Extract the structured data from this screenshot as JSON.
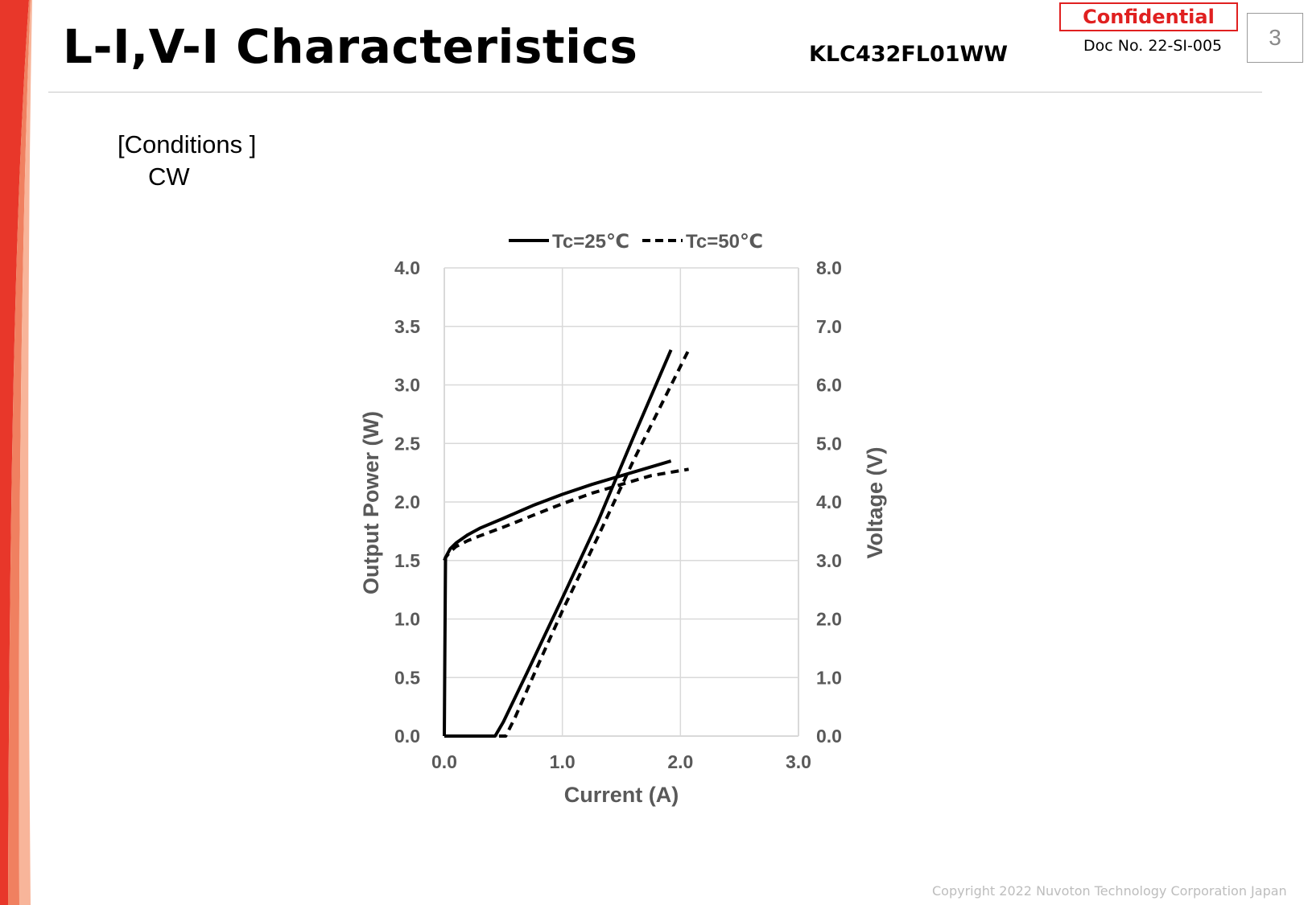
{
  "header": {
    "title": "L-I,V-I Characteristics",
    "model": "KLC432FL01WW",
    "confidential": "Confidential",
    "doc_no": "Doc No. 22-SI-005",
    "page_number": "3"
  },
  "conditions": {
    "label": "[Conditions ]",
    "value": "CW"
  },
  "footer": {
    "copyright": "Copyright 2022 Nuvoton Technology Corporation Japan"
  },
  "colors": {
    "stripe_outer": "#e8372a",
    "stripe_mid": "#f08060",
    "stripe_inner": "#f8b59a",
    "confidential": "#e02020",
    "series": "#000000",
    "axis_text": "#595959",
    "grid": "#d9d9d9"
  },
  "chart_data": {
    "type": "line",
    "title": "",
    "xlabel": "Current (A)",
    "ylabel": "Output Power (W)",
    "y2label": "Voltage (V)",
    "xlim": [
      0,
      3
    ],
    "ylim": [
      0,
      4
    ],
    "y2lim": [
      0,
      8
    ],
    "xticks": [
      "0.0",
      "1.0",
      "2.0",
      "3.0"
    ],
    "yticks": [
      "0.0",
      "0.5",
      "1.0",
      "1.5",
      "2.0",
      "2.5",
      "3.0",
      "3.5",
      "4.0"
    ],
    "y2ticks": [
      "0.0",
      "1.0",
      "2.0",
      "3.0",
      "4.0",
      "5.0",
      "6.0",
      "7.0",
      "8.0"
    ],
    "grid": true,
    "legend_position": "top-center",
    "series": [
      {
        "name": "Tc=25℃",
        "style": "solid",
        "axis": "left",
        "quantity": "power",
        "x": [
          0,
          0.43,
          0.5,
          0.7,
          1.0,
          1.3,
          1.6,
          1.92
        ],
        "y": [
          0,
          0,
          0.12,
          0.54,
          1.18,
          1.83,
          2.55,
          3.3
        ]
      },
      {
        "name": "Tc=50℃",
        "style": "dashed",
        "axis": "left",
        "quantity": "power",
        "x": [
          0,
          0.52,
          0.6,
          0.8,
          1.0,
          1.3,
          1.6,
          2.07
        ],
        "y": [
          0,
          0,
          0.16,
          0.62,
          1.07,
          1.7,
          2.35,
          3.3
        ]
      },
      {
        "name": "Tc=25℃",
        "style": "solid",
        "axis": "right",
        "quantity": "voltage",
        "x": [
          0,
          0.005,
          0.01,
          0.05,
          0.1,
          0.2,
          0.3,
          0.5,
          0.75,
          1.0,
          1.25,
          1.5,
          1.75,
          1.92
        ],
        "y": [
          0,
          1.5,
          3.05,
          3.2,
          3.3,
          3.44,
          3.55,
          3.72,
          3.94,
          4.13,
          4.3,
          4.45,
          4.6,
          4.7
        ]
      },
      {
        "name": "Tc=50℃",
        "style": "dashed",
        "axis": "right",
        "quantity": "voltage",
        "x": [
          0,
          0.01,
          0.05,
          0.1,
          0.2,
          0.3,
          0.5,
          0.75,
          1.0,
          1.25,
          1.5,
          1.75,
          2.07
        ],
        "y": [
          3.0,
          3.05,
          3.15,
          3.24,
          3.34,
          3.42,
          3.57,
          3.77,
          3.97,
          4.15,
          4.3,
          4.45,
          4.56
        ]
      }
    ]
  }
}
